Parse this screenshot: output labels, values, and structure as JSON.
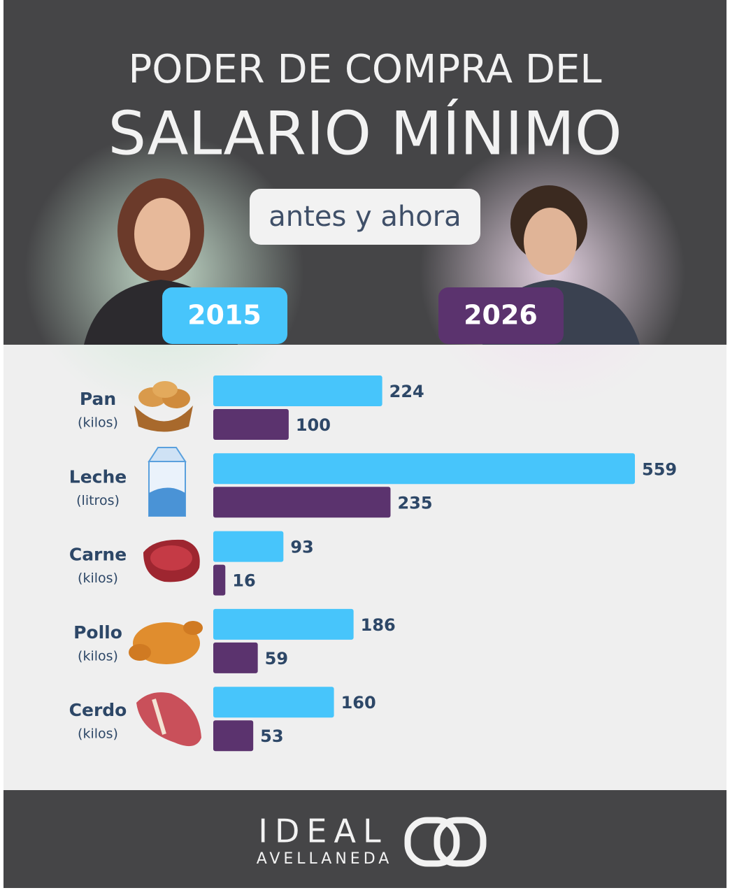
{
  "chart_data": {
    "type": "barh",
    "title_lines": [
      "PODER DE COMPRA DEL",
      "SALARIO MÍNIMO"
    ],
    "subtitle": "antes y ahora",
    "categories": [
      "Pan",
      "Leche",
      "Carne",
      "Pollo",
      "Cerdo"
    ],
    "category_units": [
      "(kilos)",
      "(litros)",
      "(kilos)",
      "(kilos)",
      "(kilos)"
    ],
    "series": [
      {
        "name": "2015",
        "color": "#47c5fb",
        "values": [
          224,
          559,
          93,
          186,
          160
        ]
      },
      {
        "name": "2026",
        "color": "#5b336e",
        "values": [
          100,
          235,
          16,
          59,
          53
        ]
      }
    ]
  },
  "brand": {
    "name": "IDEAL",
    "place": "AVELLANEDA"
  }
}
